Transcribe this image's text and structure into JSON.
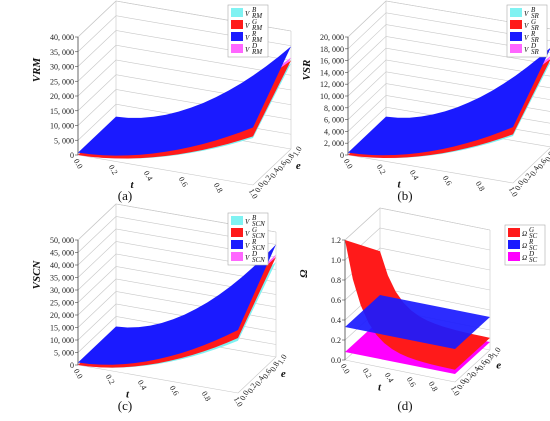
{
  "chart_data": [
    {
      "type": "surface3d",
      "panel_label": "(a)",
      "zlabel": "V_RM",
      "xlabel": "t",
      "ylabel": "e",
      "zlim": [
        0,
        40000
      ],
      "zticks": [
        "0",
        "5, 000",
        "10, 000",
        "15, 000",
        "20, 000",
        "25, 000",
        "30, 000",
        "35, 000",
        "40, 000"
      ],
      "xticks": [
        "0.0",
        "0.2",
        "0.4",
        "0.6",
        "0.8",
        "1.0"
      ],
      "yticks": [
        "0.0",
        "0.2",
        "0.4",
        "0.6",
        "0.8",
        "1.0"
      ],
      "legend": [
        {
          "main": "V",
          "sub": "RM",
          "sup": "B",
          "color": "#7ff2f2"
        },
        {
          "main": "V",
          "sub": "RM",
          "sup": "G",
          "color": "#ff1a1a"
        },
        {
          "main": "V",
          "sub": "RM",
          "sup": "R",
          "color": "#1a1aff"
        },
        {
          "main": "V",
          "sub": "RM",
          "sup": "D",
          "color": "#ff66ff"
        }
      ],
      "series": [
        {
          "name": "V_RM^B",
          "color": "#7ff2f2",
          "z_min": 0,
          "z_max": 29000
        },
        {
          "name": "V_RM^G",
          "color": "#ff1a1a",
          "z_min": 0,
          "z_max": 30000
        },
        {
          "name": "V_RM^R",
          "color": "#1a1aff",
          "z_min": 0,
          "z_max": 34000
        },
        {
          "name": "V_RM^D",
          "color": "#ff66ff",
          "z_min": 0,
          "z_max": 31000
        }
      ]
    },
    {
      "type": "surface3d",
      "panel_label": "(b)",
      "zlabel": "V_SR",
      "xlabel": "t",
      "ylabel": "e",
      "zlim": [
        0,
        20000
      ],
      "zticks": [
        "0",
        "2, 000",
        "4, 000",
        "6, 000",
        "8, 000",
        "10, 000",
        "12, 000",
        "14, 000",
        "16, 000",
        "18, 000",
        "20, 000"
      ],
      "xticks": [
        "0.0",
        "0.2",
        "0.4",
        "0.6",
        "0.8",
        "1.0"
      ],
      "yticks": [
        "0.0",
        "0.2",
        "0.4",
        "0.6",
        "0.8",
        "1.0"
      ],
      "legend": [
        {
          "main": "V",
          "sub": "SR",
          "sup": "B",
          "color": "#7ff2f2"
        },
        {
          "main": "V",
          "sub": "SR",
          "sup": "G",
          "color": "#ff1a1a"
        },
        {
          "main": "V",
          "sub": "SR",
          "sup": "R",
          "color": "#1a1aff"
        },
        {
          "main": "V",
          "sub": "SR",
          "sup": "D",
          "color": "#ff66ff"
        }
      ],
      "series": [
        {
          "name": "V_SR^B",
          "color": "#7ff2f2",
          "z_min": 0,
          "z_max": 14500
        },
        {
          "name": "V_SR^G",
          "color": "#ff1a1a",
          "z_min": 0,
          "z_max": 15000
        },
        {
          "name": "V_SR^R",
          "color": "#1a1aff",
          "z_min": 0,
          "z_max": 16500
        },
        {
          "name": "V_SR^D",
          "color": "#ff66ff",
          "z_min": 0,
          "z_max": 15500
        }
      ]
    },
    {
      "type": "surface3d",
      "panel_label": "(c)",
      "zlabel": "V_SCN",
      "xlabel": "t",
      "ylabel": "e",
      "zlim": [
        0,
        50000
      ],
      "zticks": [
        "0",
        "5, 000",
        "10, 000",
        "15, 000",
        "20, 000",
        "25, 000",
        "30, 000",
        "35, 000",
        "40, 000",
        "45, 000",
        "50, 000"
      ],
      "xticks": [
        "0.0",
        "0.2",
        "0.4",
        "0.6",
        "0.8",
        "1.0"
      ],
      "yticks": [
        "0.0",
        "0.2",
        "0.4",
        "0.6",
        "0.8",
        "1.0"
      ],
      "legend": [
        {
          "main": "V",
          "sub": "SCN",
          "sup": "B",
          "color": "#7ff2f2"
        },
        {
          "main": "V",
          "sub": "SCN",
          "sup": "G",
          "color": "#ff1a1a"
        },
        {
          "main": "V",
          "sub": "SCN",
          "sup": "R",
          "color": "#1a1aff"
        },
        {
          "main": "V",
          "sub": "SCN",
          "sup": "D",
          "color": "#ff66ff"
        }
      ],
      "series": [
        {
          "name": "V_SCN^B",
          "color": "#7ff2f2",
          "z_min": 0,
          "z_max": 38000
        },
        {
          "name": "V_SCN^G",
          "color": "#ff1a1a",
          "z_min": 0,
          "z_max": 40000
        },
        {
          "name": "V_SCN^R",
          "color": "#1a1aff",
          "z_min": 0,
          "z_max": 44000
        },
        {
          "name": "V_SCN^D",
          "color": "#ff66ff",
          "z_min": 0,
          "z_max": 41000
        }
      ]
    },
    {
      "type": "surface3d",
      "panel_label": "(d)",
      "zlabel": "Ω",
      "xlabel": "t",
      "ylabel": "e",
      "zlim": [
        0,
        1.2
      ],
      "zticks": [
        "0.0",
        "0.2",
        "0.4",
        "0.6",
        "0.8",
        "1.0",
        "1.2"
      ],
      "xticks": [
        "0.0",
        "0.2",
        "0.4",
        "0.6",
        "0.8",
        "1.0"
      ],
      "yticks": [
        "0.0",
        "0.2",
        "0.4",
        "0.6",
        "0.8",
        "1.0"
      ],
      "legend": [
        {
          "main": "Ω",
          "sub": "SC",
          "sup": "G",
          "color": "#ff1a1a"
        },
        {
          "main": "Ω",
          "sub": "SC",
          "sup": "R",
          "color": "#1a1aff"
        },
        {
          "main": "Ω",
          "sub": "SC",
          "sup": "D",
          "color": "#ff00ff"
        }
      ],
      "series": [
        {
          "name": "Ω_SC^G",
          "color": "#ff1a1a",
          "z_min": 0.12,
          "z_max": 1.2
        },
        {
          "name": "Ω_SC^R",
          "color": "#1a1aff",
          "z_min": 0.33,
          "z_max": 0.33
        },
        {
          "name": "Ω_SC^D",
          "color": "#ff00ff",
          "z_min": 0.08,
          "z_max": 0.08
        }
      ]
    }
  ]
}
